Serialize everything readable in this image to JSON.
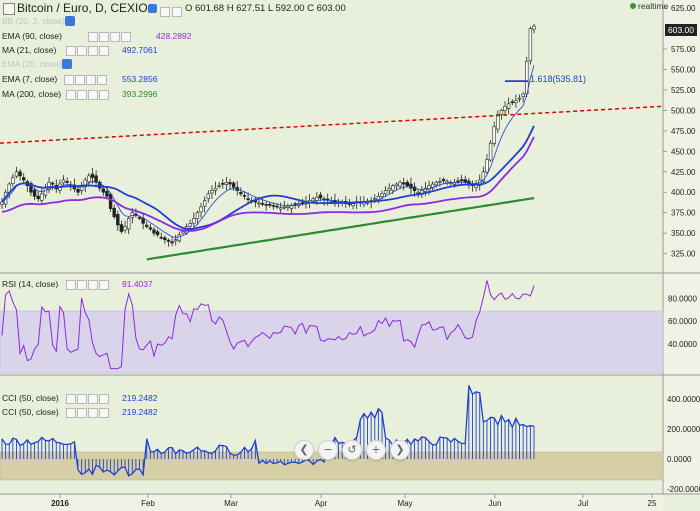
{
  "header": {
    "symbol": "Bitcoin / Euro, D, CEXIO",
    "ohlc": "O 601.68  H 627.51  L 592.00  C 603.00",
    "realtime": "realtime"
  },
  "indicators": {
    "hidden1": "BB (20, 2, close)",
    "ema90": {
      "label": "EMA (90, close)",
      "value": "428.2892",
      "color": "#8a2be2"
    },
    "ma21": {
      "label": "MA (21, close)",
      "value": "492.7061",
      "color": "#1f3fd0"
    },
    "hidden2": "EMA (20, close)",
    "ema7": {
      "label": "EMA (7, close)",
      "value": "553.2856",
      "color": "#1f3fd0"
    },
    "ma200": {
      "label": "MA (200, close)",
      "value": "393.2996",
      "color": "#2e8b2e"
    },
    "rsi": {
      "label": "RSI (14, close)",
      "value": "91.4037",
      "color": "#8a2be2"
    },
    "cci1": {
      "label": "CCI (50, close)",
      "value": "219.2482",
      "color": "#1f3fd0"
    },
    "cci2": {
      "label": "CCI (50, close)",
      "value": "219.2482",
      "color": "#1f3fd0"
    }
  },
  "fib_label": "1.618(535.81)",
  "price_tag": "603.00",
  "chart_data": {
    "type": "candlestick",
    "price_axis": {
      "ticks": [
        325,
        350,
        375,
        400,
        425,
        450,
        475,
        500,
        525,
        550,
        575,
        625
      ],
      "range": [
        305,
        630
      ]
    },
    "rsi_axis": {
      "ticks": [
        "40.0000",
        "60.0000",
        "80.0000"
      ],
      "range": [
        15,
        100
      ],
      "band": [
        30,
        70
      ]
    },
    "cci_axis": {
      "ticks": [
        "-200.0000",
        "0.0000",
        "200.0000",
        "400.0000"
      ],
      "range": [
        -220,
        540
      ],
      "band": [
        -100,
        100
      ]
    },
    "x_axis": {
      "ticks": [
        "2016",
        "Feb",
        "Mar",
        "Apr",
        "May",
        "Jun",
        "Jul",
        "25"
      ]
    },
    "trendline": {
      "from": 460,
      "to": 505,
      "color": "#e00000"
    },
    "fib_level": 535.81,
    "closes": [
      388,
      400,
      410,
      418,
      425,
      420,
      415,
      408,
      400,
      395,
      392,
      398,
      405,
      412,
      410,
      404,
      410,
      415,
      412,
      408,
      404,
      400,
      408,
      415,
      420,
      418,
      412,
      405,
      400,
      395,
      380,
      370,
      360,
      352,
      358,
      368,
      375,
      372,
      368,
      362,
      358,
      355,
      350,
      348,
      345,
      342,
      340,
      338,
      342,
      348,
      352,
      358,
      362,
      368,
      375,
      382,
      390,
      398,
      402,
      405,
      408,
      410,
      412,
      410,
      406,
      402,
      398,
      395,
      392,
      390,
      388,
      387,
      386,
      385,
      384,
      383,
      382,
      381,
      382,
      383,
      384,
      385,
      386,
      387,
      388,
      390,
      392,
      394,
      393,
      391,
      390,
      389,
      388,
      388,
      387,
      386,
      386,
      386,
      387,
      388,
      388,
      389,
      390,
      392,
      395,
      398,
      402,
      405,
      408,
      410,
      412,
      410,
      408,
      405,
      402,
      400,
      402,
      405,
      408,
      410,
      412,
      413,
      414,
      413,
      412,
      412,
      413,
      414,
      412,
      410,
      408,
      410,
      415,
      425,
      440,
      460,
      480,
      495,
      500,
      505,
      508,
      510,
      512,
      515,
      520,
      560,
      600,
      603
    ]
  }
}
